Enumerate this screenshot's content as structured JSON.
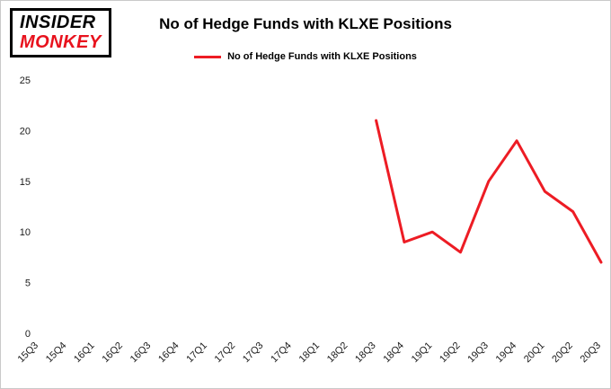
{
  "logo": {
    "line1": "INSIDER",
    "line2": "MONKEY"
  },
  "header": {
    "title": "No of Hedge Funds with KLXE Positions"
  },
  "legend": {
    "label": "No of Hedge Funds with KLXE Positions",
    "color": "#ed1c24"
  },
  "chart_data": {
    "type": "line",
    "title": "No of Hedge Funds with KLXE Positions",
    "categories": [
      "15Q3",
      "15Q4",
      "16Q1",
      "16Q2",
      "16Q3",
      "16Q4",
      "17Q1",
      "17Q2",
      "17Q3",
      "17Q4",
      "18Q1",
      "18Q2",
      "18Q3",
      "18Q4",
      "19Q1",
      "19Q2",
      "19Q3",
      "19Q4",
      "20Q1",
      "20Q2",
      "20Q3"
    ],
    "series": [
      {
        "name": "No of Hedge Funds with KLXE Positions",
        "color": "#ed1c24",
        "x": [
          "18Q3",
          "18Q4",
          "19Q1",
          "19Q2",
          "19Q3",
          "19Q4",
          "20Q1",
          "20Q2",
          "20Q3"
        ],
        "values": [
          21,
          9,
          10,
          8,
          15,
          19,
          14,
          12,
          7
        ]
      }
    ],
    "xlabel": "",
    "ylabel": "",
    "ylim": [
      0,
      25
    ],
    "yticks": [
      0,
      5,
      10,
      15,
      20,
      25
    ],
    "grid": false,
    "legend_position": "top"
  }
}
